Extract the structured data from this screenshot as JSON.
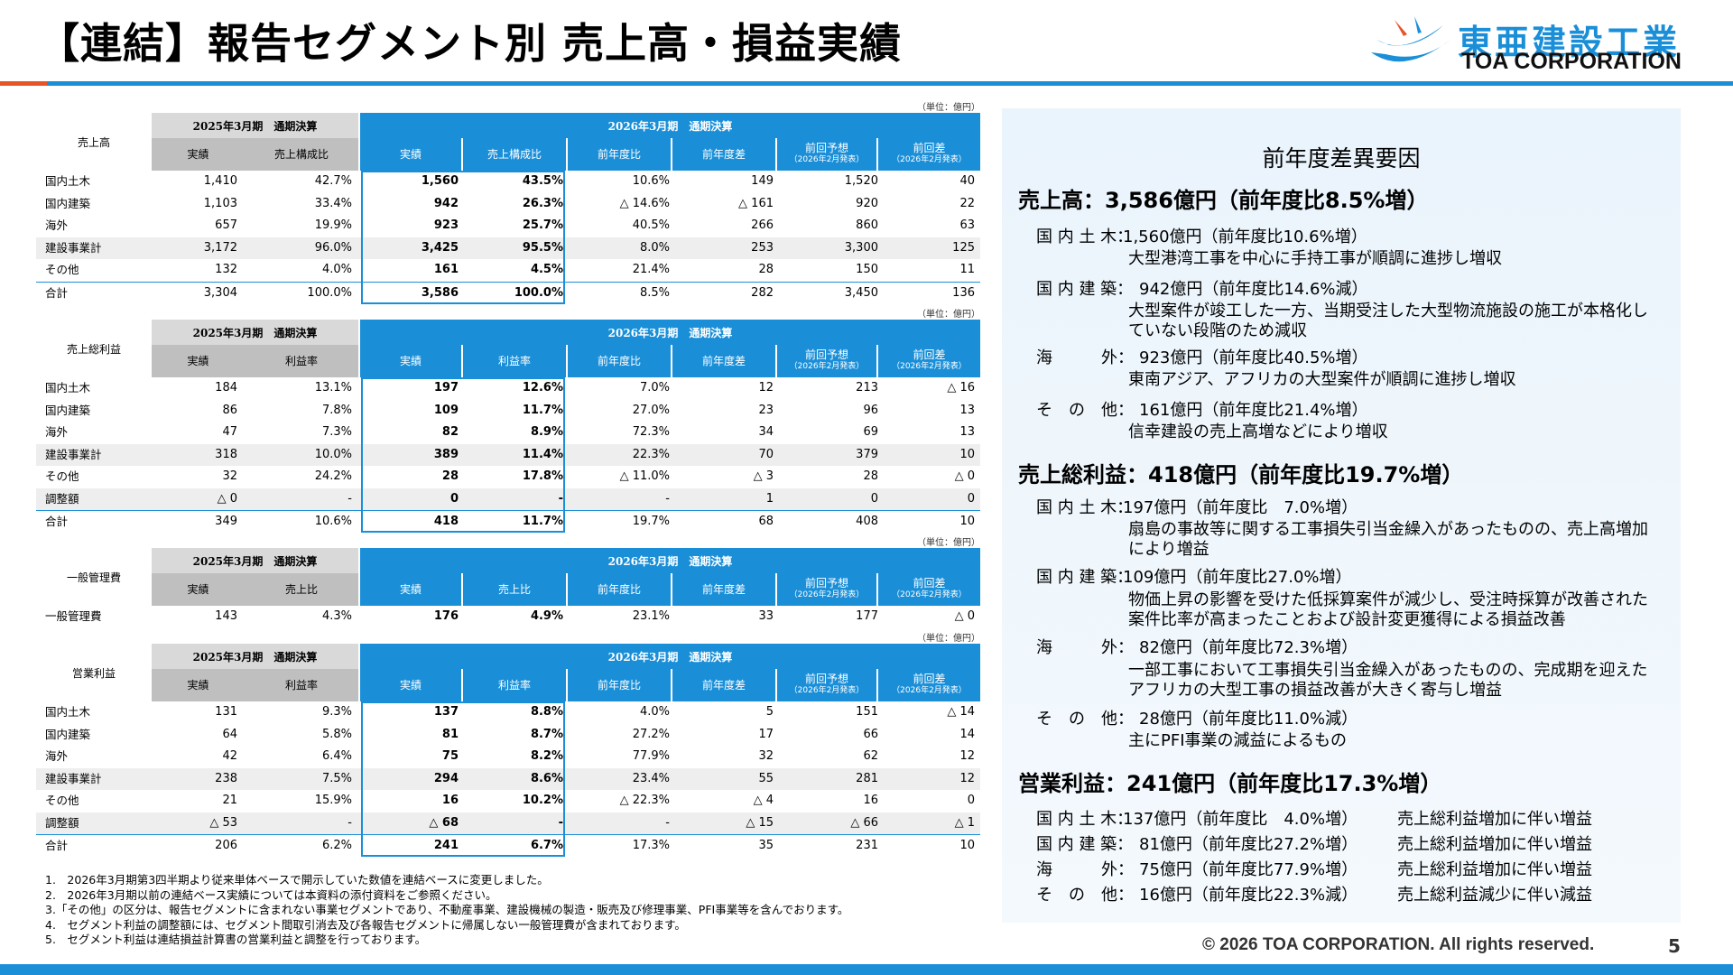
{
  "page": {
    "title": "【連結】報告セグメント別 売上高・損益実績",
    "copyright": "© 2026 TOA CORPORATION.  All rights reserved.",
    "page_number": "5"
  },
  "logo": {
    "jp": "東亜建設工業",
    "en": "TOA CORPORATION",
    "accent": "#1a8fd8"
  },
  "unit": "（単位：億円）",
  "prev_title": "2025年3月期　通期決算",
  "cur_title": "2026年3月期　通期決算",
  "hdr_common": {
    "actual": "実績",
    "yoy_ratio": "前年度比",
    "yoy_diff": "前年度差",
    "fcst": "前回予想",
    "fcst_sub": "（2026年2月発表）",
    "fcst_diff": "前回差",
    "fcst_diff_sub": "（2026年2月発表）"
  },
  "sales": {
    "label": "売上高",
    "ratio_hdr": "売上構成比",
    "rows": [
      {
        "name": "国内土木",
        "p1": "1,410",
        "p2": "42.7%",
        "c1": "1,560",
        "c2": "43.5%",
        "c3": "10.6%",
        "c4": "149",
        "c5": "1,520",
        "c6": "40"
      },
      {
        "name": "国内建築",
        "p1": "1,103",
        "p2": "33.4%",
        "c1": "942",
        "c2": "26.3%",
        "c3": "△ 14.6%",
        "c4": "△ 161",
        "c5": "920",
        "c6": "22"
      },
      {
        "name": "海外",
        "p1": "657",
        "p2": "19.9%",
        "c1": "923",
        "c2": "25.7%",
        "c3": "40.5%",
        "c4": "266",
        "c5": "860",
        "c6": "63"
      },
      {
        "name": "建設事業計",
        "p1": "3,172",
        "p2": "96.0%",
        "c1": "3,425",
        "c2": "95.5%",
        "c3": "8.0%",
        "c4": "253",
        "c5": "3,300",
        "c6": "125"
      },
      {
        "name": "その他",
        "p1": "132",
        "p2": "4.0%",
        "c1": "161",
        "c2": "4.5%",
        "c3": "21.4%",
        "c4": "28",
        "c5": "150",
        "c6": "11"
      },
      {
        "name": "合計",
        "p1": "3,304",
        "p2": "100.0%",
        "c1": "3,586",
        "c2": "100.0%",
        "c3": "8.5%",
        "c4": "282",
        "c5": "3,450",
        "c6": "136"
      }
    ]
  },
  "gross": {
    "label": "売上総利益",
    "ratio_hdr": "利益率",
    "rows": [
      {
        "name": "国内土木",
        "p1": "184",
        "p2": "13.1%",
        "c1": "197",
        "c2": "12.6%",
        "c3": "7.0%",
        "c4": "12",
        "c5": "213",
        "c6": "△ 16"
      },
      {
        "name": "国内建築",
        "p1": "86",
        "p2": "7.8%",
        "c1": "109",
        "c2": "11.7%",
        "c3": "27.0%",
        "c4": "23",
        "c5": "96",
        "c6": "13"
      },
      {
        "name": "海外",
        "p1": "47",
        "p2": "7.3%",
        "c1": "82",
        "c2": "8.9%",
        "c3": "72.3%",
        "c4": "34",
        "c5": "69",
        "c6": "13"
      },
      {
        "name": "建設事業計",
        "p1": "318",
        "p2": "10.0%",
        "c1": "389",
        "c2": "11.4%",
        "c3": "22.3%",
        "c4": "70",
        "c5": "379",
        "c6": "10"
      },
      {
        "name": "その他",
        "p1": "32",
        "p2": "24.2%",
        "c1": "28",
        "c2": "17.8%",
        "c3": "△ 11.0%",
        "c4": "△ 3",
        "c5": "28",
        "c6": "△ 0"
      },
      {
        "name": "調整額",
        "p1": "△ 0",
        "p2": "-",
        "c1": "0",
        "c2": "-",
        "c3": "-",
        "c4": "1",
        "c5": "0",
        "c6": "0"
      },
      {
        "name": "合計",
        "p1": "349",
        "p2": "10.6%",
        "c1": "418",
        "c2": "11.7%",
        "c3": "19.7%",
        "c4": "68",
        "c5": "408",
        "c6": "10"
      }
    ]
  },
  "sga": {
    "label": "一般管理費",
    "ratio_hdr": "売上比",
    "rows": [
      {
        "name": "一般管理費",
        "p1": "143",
        "p2": "4.3%",
        "c1": "176",
        "c2": "4.9%",
        "c3": "23.1%",
        "c4": "33",
        "c5": "177",
        "c6": "△ 0"
      }
    ]
  },
  "op": {
    "label": "営業利益",
    "ratio_hdr": "利益率",
    "rows": [
      {
        "name": "国内土木",
        "p1": "131",
        "p2": "9.3%",
        "c1": "137",
        "c2": "8.8%",
        "c3": "4.0%",
        "c4": "5",
        "c5": "151",
        "c6": "△ 14"
      },
      {
        "name": "国内建築",
        "p1": "64",
        "p2": "5.8%",
        "c1": "81",
        "c2": "8.7%",
        "c3": "27.2%",
        "c4": "17",
        "c5": "66",
        "c6": "14"
      },
      {
        "name": "海外",
        "p1": "42",
        "p2": "6.4%",
        "c1": "75",
        "c2": "8.2%",
        "c3": "77.9%",
        "c4": "32",
        "c5": "62",
        "c6": "12"
      },
      {
        "name": "建設事業計",
        "p1": "238",
        "p2": "7.5%",
        "c1": "294",
        "c2": "8.6%",
        "c3": "23.4%",
        "c4": "55",
        "c5": "281",
        "c6": "12"
      },
      {
        "name": "その他",
        "p1": "21",
        "p2": "15.9%",
        "c1": "16",
        "c2": "10.2%",
        "c3": "△ 22.3%",
        "c4": "△ 4",
        "c5": "16",
        "c6": "0"
      },
      {
        "name": "調整額",
        "p1": "△ 53",
        "p2": "-",
        "c1": "△ 68",
        "c2": "-",
        "c3": "-",
        "c4": "△ 15",
        "c5": "△ 66",
        "c6": "△ 1"
      },
      {
        "name": "合計",
        "p1": "206",
        "p2": "6.2%",
        "c1": "241",
        "c2": "6.7%",
        "c3": "17.3%",
        "c4": "35",
        "c5": "231",
        "c6": "10"
      }
    ]
  },
  "notes": [
    "1.　2026年3月期第3四半期より従来単体ベースで開示していた数値を連結ベースに変更しました。",
    "2.　2026年3月期以前の連結ベース実績については本資料の添付資料をご参照ください。",
    "3.「その他」の区分は、報告セグメントに含まれない事業セグメントであり、不動産事業、建設機械の製造・販売及び修理事業、PFI事業等を含んでおります。",
    "4.　セグメント利益の調整額には、セグメント間取引消去及び各報告セグメントに帰属しない一般管理費が含まれております。",
    "5.　セグメント利益は連結損益計算書の営業利益と調整を行っております。"
  ],
  "factors": {
    "title": "前年度差異要因",
    "sales_head": "売上高：3,586億円（前年度比8.5%増）",
    "sales": [
      {
        "label": "国 内 土 木：",
        "value": "1,560億円（前年度比10.6%増）",
        "desc": "大型港湾工事を中心に手持工事が順調に進捗し増収"
      },
      {
        "label": "国 内 建 築：",
        "value": "　942億円（前年度比14.6%減）",
        "desc": "大型案件が竣工した一方、当期受注した大型物流施設の施工が本格化していない段階のため減収"
      },
      {
        "label": "海　　　外：",
        "value": "　923億円（前年度比40.5%増）",
        "desc": "東南アジア、アフリカの大型案件が順調に進捗し増収"
      },
      {
        "label": "そ　の　他：",
        "value": "　161億円（前年度比21.4%増）",
        "desc": "信幸建設の売上高増などにより増収"
      }
    ],
    "gross_head": "売上総利益：418億円（前年度比19.7%増）",
    "gross": [
      {
        "label": "国 内 土 木：",
        "value": "197億円（前年度比　7.0%増）",
        "desc": "扇島の事故等に関する工事損失引当金繰入があったものの、売上高増加により増益"
      },
      {
        "label": "国 内 建 築：",
        "value": "109億円（前年度比27.0%増）",
        "desc": "物価上昇の影響を受けた低採算案件が減少し、受注時採算が改善された案件比率が高まったことおよび設計変更獲得による損益改善"
      },
      {
        "label": "海　　　外：",
        "value": "　82億円（前年度比72.3%増）",
        "desc": "一部工事において工事損失引当金繰入があったものの、完成期を迎えたアフリカの大型工事の損益改善が大きく寄与し増益"
      },
      {
        "label": "そ　の　他：",
        "value": "　28億円（前年度比11.0%減）",
        "desc": "主にPFI事業の減益によるもの"
      }
    ],
    "op_head": "営業利益：241億円（前年度比17.3%増）",
    "op": [
      {
        "label": "国 内 土 木：",
        "value": "137億円（前年度比　4.0%増）",
        "reason": "売上総利益増加に伴い増益"
      },
      {
        "label": "国 内 建 築：",
        "value": "　81億円（前年度比27.2%増）",
        "reason": "売上総利益増加に伴い増益"
      },
      {
        "label": "海　　　外：",
        "value": "　75億円（前年度比77.9%増）",
        "reason": "売上総利益増加に伴い増益"
      },
      {
        "label": "そ　の　他：",
        "value": "　16億円（前年度比22.3%減）",
        "reason": "売上総利益減少に伴い減益"
      }
    ]
  }
}
